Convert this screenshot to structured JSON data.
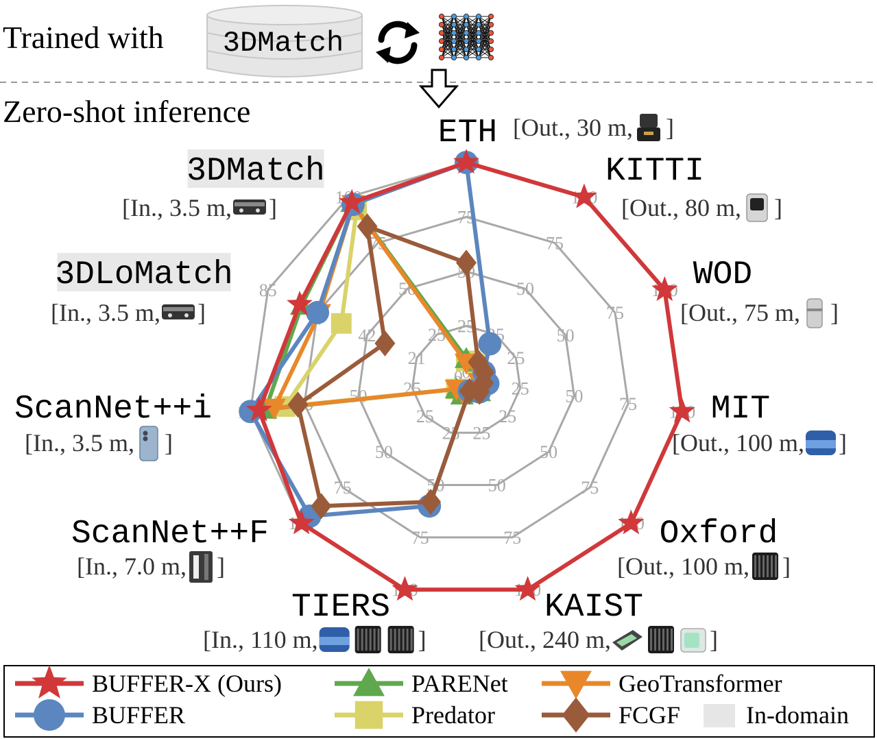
{
  "header": {
    "trained_label": "Trained with",
    "trained_dataset": "3DMatch",
    "inference_label": "Zero-shot inference"
  },
  "chart_data": {
    "type": "radar",
    "ring_levels": [
      25,
      50,
      75,
      100
    ],
    "axes": [
      {
        "name": "ETH",
        "info_prefix": "[Out., 30 m, ",
        "info_suffix": "]",
        "sensors": [
          "lidar-puck"
        ],
        "in_domain": false,
        "ring_labels": [
          "0",
          "25",
          "50",
          "75",
          "100"
        ]
      },
      {
        "name": "KITTI",
        "info_prefix": "[Out., 80 m, ",
        "info_suffix": "]",
        "sensors": [
          "lidar-cylinder"
        ],
        "in_domain": false,
        "ring_labels": [
          "",
          "25",
          "50",
          "75",
          "100"
        ]
      },
      {
        "name": "WOD",
        "info_prefix": "[Out., 75 m, ",
        "info_suffix": "]",
        "sensors": [
          "lidar-slim"
        ],
        "in_domain": false,
        "ring_labels": [
          "",
          "25",
          "50",
          "75",
          "100"
        ]
      },
      {
        "name": "MIT",
        "info_prefix": "[Out., 100 m, ",
        "info_suffix": "]",
        "sensors": [
          "lidar-velodyne"
        ],
        "in_domain": false,
        "ring_labels": [
          "",
          "25",
          "50",
          "75",
          "100"
        ]
      },
      {
        "name": "Oxford",
        "info_prefix": "[Out., 100 m, ",
        "info_suffix": "]",
        "sensors": [
          "lidar-ouster"
        ],
        "in_domain": false,
        "ring_labels": [
          "",
          "25",
          "50",
          "75",
          "100"
        ]
      },
      {
        "name": "KAIST",
        "info_prefix": "[Out., 240 m, ",
        "info_suffix": "]",
        "sensors": [
          "lidar-livox",
          "lidar-ouster",
          "lidar-aeva"
        ],
        "in_domain": false,
        "ring_labels": [
          "",
          "25",
          "50",
          "75",
          "100"
        ]
      },
      {
        "name": "TIERS",
        "info_prefix": "[In., 110 m, ",
        "info_suffix": " ]",
        "sensors": [
          "lidar-velodyne",
          "lidar-ouster",
          "lidar-ouster"
        ],
        "in_domain": false,
        "ring_labels": [
          "",
          "25",
          "50",
          "75",
          "100"
        ]
      },
      {
        "name": "ScanNet++F",
        "info_prefix": "[In., 7.0 m, ",
        "info_suffix": "]",
        "sensors": [
          "faro-scanner"
        ],
        "in_domain": false,
        "ring_labels": [
          "",
          "25",
          "50",
          "75",
          "100"
        ]
      },
      {
        "name": "ScanNet++i",
        "info_prefix": "[In., 3.5 m, ",
        "info_suffix": " ]",
        "sensors": [
          "iphone"
        ],
        "in_domain": false,
        "ring_labels": [
          "0",
          "25",
          "50",
          "75",
          "100"
        ]
      },
      {
        "name": "3DLoMatch",
        "info_prefix": "[In., 3.5 m, ",
        "info_suffix": "]",
        "sensors": [
          "rgbd-camera"
        ],
        "in_domain": true,
        "ring_labels": [
          "0",
          "21",
          "42",
          "64",
          "85"
        ]
      },
      {
        "name": "3DMatch",
        "info_prefix": "[In., 3.5 m, ",
        "info_suffix": " ]",
        "sensors": [
          "rgbd-camera"
        ],
        "in_domain": true,
        "ring_labels": [
          "",
          "25",
          "50",
          "75",
          "100"
        ]
      }
    ],
    "series": [
      {
        "name": "BUFFER-X (Ours)",
        "color": "#d0383a",
        "marker": "star",
        "values": [
          100,
          100,
          100,
          100,
          100,
          100,
          100,
          100,
          96,
          84,
          97
        ]
      },
      {
        "name": "BUFFER",
        "color": "#5b86bf",
        "marker": "circle",
        "values": [
          100,
          20,
          9,
          10,
          8,
          5,
          60,
          95,
          100,
          75,
          96
        ]
      },
      {
        "name": "PARENet",
        "color": "#5fa84e",
        "marker": "triangle",
        "values": [
          10,
          10,
          9,
          8,
          8,
          6,
          7,
          6,
          93,
          83,
          97
        ]
      },
      {
        "name": "Predator",
        "color": "#d9d36a",
        "marker": "square",
        "values": [
          9,
          9,
          8,
          7,
          7,
          5,
          6,
          6,
          84,
          63,
          93
        ]
      },
      {
        "name": "GeoTransformer",
        "color": "#e8882a",
        "marker": "triangle-down",
        "values": [
          8,
          8,
          7,
          6,
          6,
          5,
          6,
          6,
          89,
          74,
          96
        ]
      },
      {
        "name": "FCGF",
        "color": "#9a5b3a",
        "marker": "diamond",
        "values": [
          54,
          10,
          9,
          8,
          8,
          5,
          58,
          88,
          78,
          41,
          84
        ]
      }
    ],
    "legend_extra": "In-domain"
  }
}
